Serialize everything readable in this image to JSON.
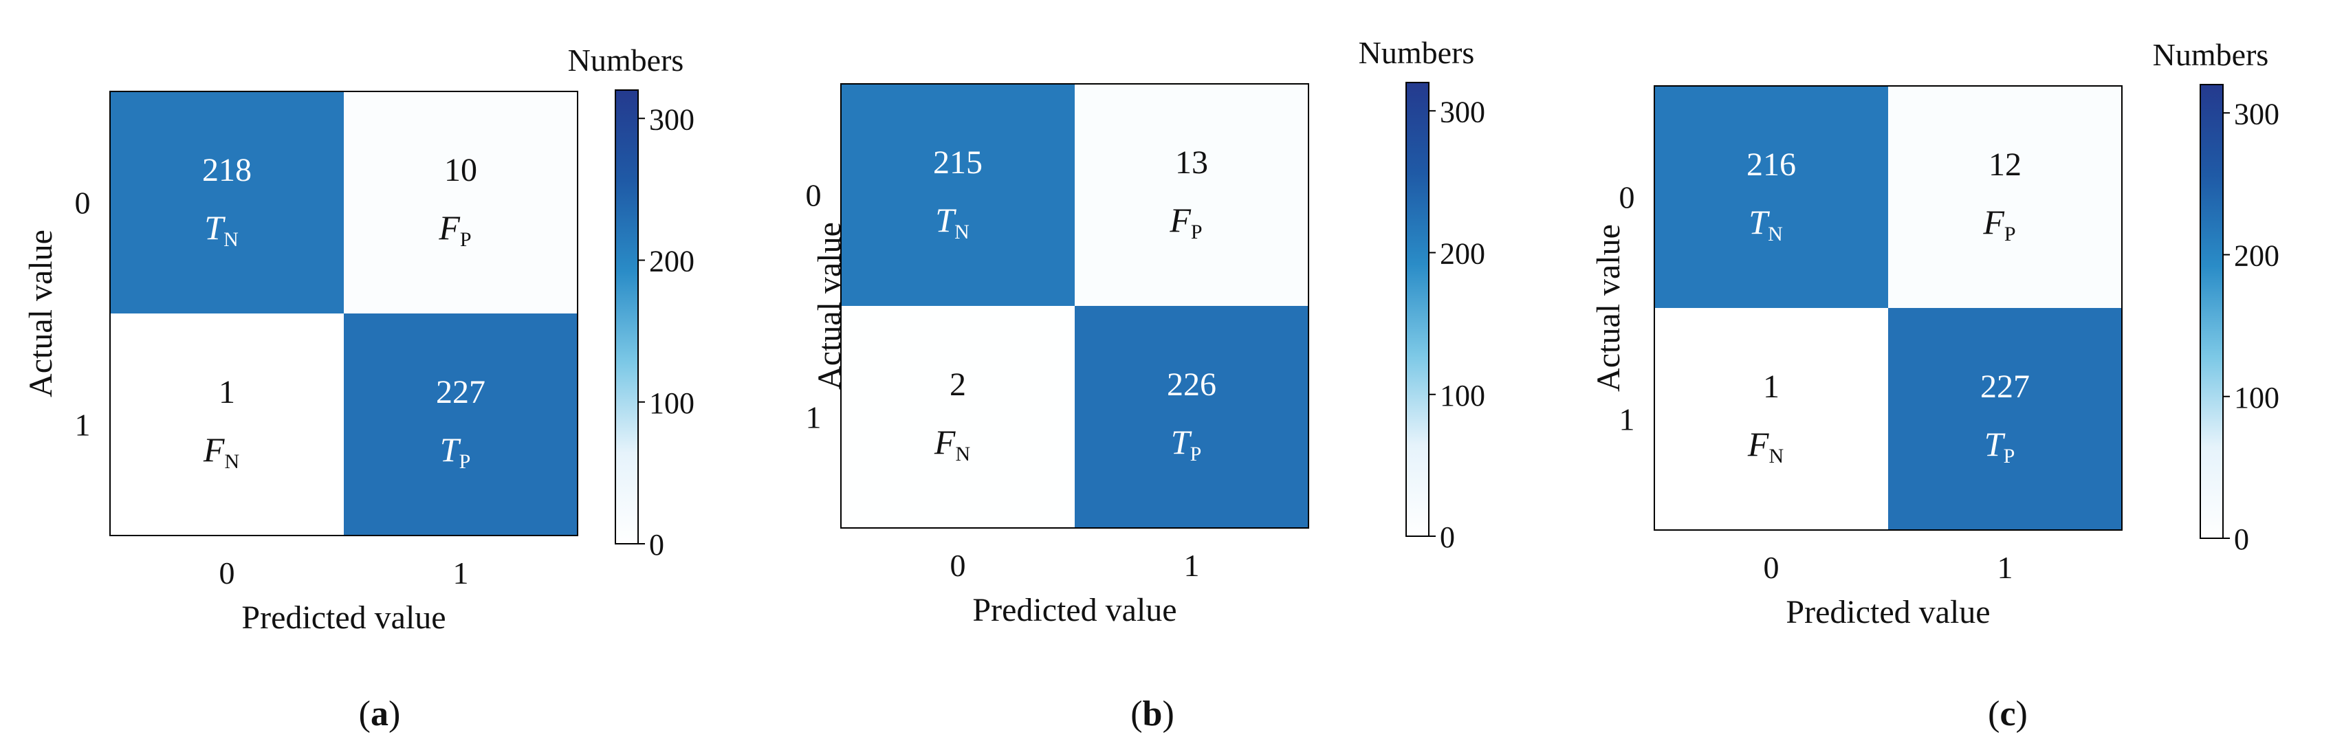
{
  "figure": {
    "colorbar_title": "Numbers",
    "colormap": [
      "#ffffff",
      "#e6f3fb",
      "#7cc8e6",
      "#2a8cc7",
      "#1f5aa6",
      "#243a8e"
    ],
    "border_color": "#000000"
  },
  "chart_data": [
    {
      "type": "heatmap",
      "panel_label": "a",
      "xlabel": "Predicted value",
      "ylabel": "Actual value",
      "x_categories": [
        "0",
        "1"
      ],
      "y_categories": [
        "0",
        "1"
      ],
      "colorbar": {
        "title": "Numbers",
        "ticks": [
          "0",
          "100",
          "200",
          "300"
        ],
        "range": [
          0,
          320
        ]
      },
      "cells": [
        {
          "row": 0,
          "col": 0,
          "value": 218,
          "symbol": "T",
          "sub": "N"
        },
        {
          "row": 0,
          "col": 1,
          "value": 10,
          "symbol": "F",
          "sub": "P"
        },
        {
          "row": 1,
          "col": 0,
          "value": 1,
          "symbol": "F",
          "sub": "N"
        },
        {
          "row": 1,
          "col": 1,
          "value": 227,
          "symbol": "T",
          "sub": "P"
        }
      ]
    },
    {
      "type": "heatmap",
      "panel_label": "b",
      "xlabel": "Predicted value",
      "ylabel": "Actual value",
      "x_categories": [
        "0",
        "1"
      ],
      "y_categories": [
        "0",
        "1"
      ],
      "colorbar": {
        "title": "Numbers",
        "ticks": [
          "0",
          "100",
          "200",
          "300"
        ],
        "range": [
          0,
          320
        ]
      },
      "cells": [
        {
          "row": 0,
          "col": 0,
          "value": 215,
          "symbol": "T",
          "sub": "N"
        },
        {
          "row": 0,
          "col": 1,
          "value": 13,
          "symbol": "F",
          "sub": "P"
        },
        {
          "row": 1,
          "col": 0,
          "value": 2,
          "symbol": "F",
          "sub": "N"
        },
        {
          "row": 1,
          "col": 1,
          "value": 226,
          "symbol": "T",
          "sub": "P"
        }
      ]
    },
    {
      "type": "heatmap",
      "panel_label": "c",
      "xlabel": "Predicted value",
      "ylabel": "Actual value",
      "x_categories": [
        "0",
        "1"
      ],
      "y_categories": [
        "0",
        "1"
      ],
      "colorbar": {
        "title": "Numbers",
        "ticks": [
          "0",
          "100",
          "200",
          "300"
        ],
        "range": [
          0,
          320
        ]
      },
      "cells": [
        {
          "row": 0,
          "col": 0,
          "value": 216,
          "symbol": "T",
          "sub": "N"
        },
        {
          "row": 0,
          "col": 1,
          "value": 12,
          "symbol": "F",
          "sub": "P"
        },
        {
          "row": 1,
          "col": 0,
          "value": 1,
          "symbol": "F",
          "sub": "N"
        },
        {
          "row": 1,
          "col": 1,
          "value": 227,
          "symbol": "T",
          "sub": "P"
        }
      ]
    }
  ]
}
